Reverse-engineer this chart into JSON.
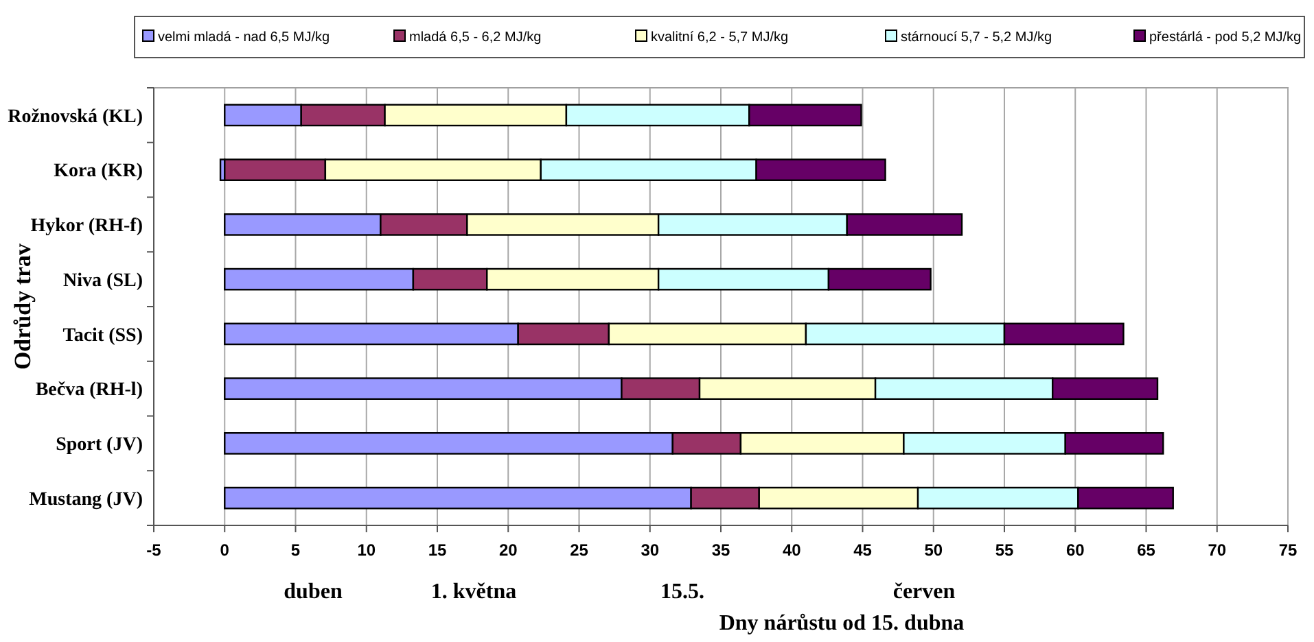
{
  "chart_data": {
    "type": "bar",
    "orientation": "horizontal",
    "stacked": true,
    "xlabel": "Dny nárůstu od 15. dubna",
    "ylabel": "Odrůdy trav",
    "categories": [
      "Rožnovská (KL)",
      "Kora (KR)",
      "Hykor (RH-f)",
      "Niva (SL)",
      "Tacit (SS)",
      "Bečva (RH-l)",
      "Sport (JV)",
      "Mustang (JV)"
    ],
    "series": [
      {
        "name": "velmi mladá - nad 6,5 MJ/kg",
        "color": "#9999ff",
        "values": [
          5.4,
          -0.3,
          11.0,
          13.3,
          20.7,
          28.0,
          31.6,
          32.9
        ]
      },
      {
        "name": "mladá 6,5 - 6,2 MJ/kg",
        "color": "#993366",
        "values": [
          5.9,
          7.1,
          6.1,
          5.2,
          6.4,
          5.5,
          4.8,
          4.8
        ]
      },
      {
        "name": "kvalitní 6,2 - 5,7 MJ/kg",
        "color": "#ffffcc",
        "values": [
          12.8,
          15.2,
          13.5,
          12.1,
          13.9,
          12.4,
          11.5,
          11.2
        ]
      },
      {
        "name": "stárnoucí 5,7 - 5,2 MJ/kg",
        "color": "#ccffff",
        "values": [
          12.9,
          15.2,
          13.3,
          12.0,
          14.0,
          12.5,
          11.4,
          11.3
        ]
      },
      {
        "name": "přestárlá - pod 5,2 MJ/kg",
        "color": "#660066",
        "values": [
          7.9,
          9.1,
          8.1,
          7.2,
          8.4,
          7.4,
          6.9,
          6.7
        ]
      }
    ],
    "xlim": [
      -5,
      75
    ],
    "xticks": [
      -5,
      0,
      5,
      10,
      15,
      20,
      25,
      30,
      35,
      40,
      45,
      50,
      55,
      60,
      65,
      70,
      75
    ],
    "grid": "x",
    "legend": "top",
    "annotations": [
      "duben",
      "1. května",
      "15.5.",
      "červen"
    ]
  }
}
